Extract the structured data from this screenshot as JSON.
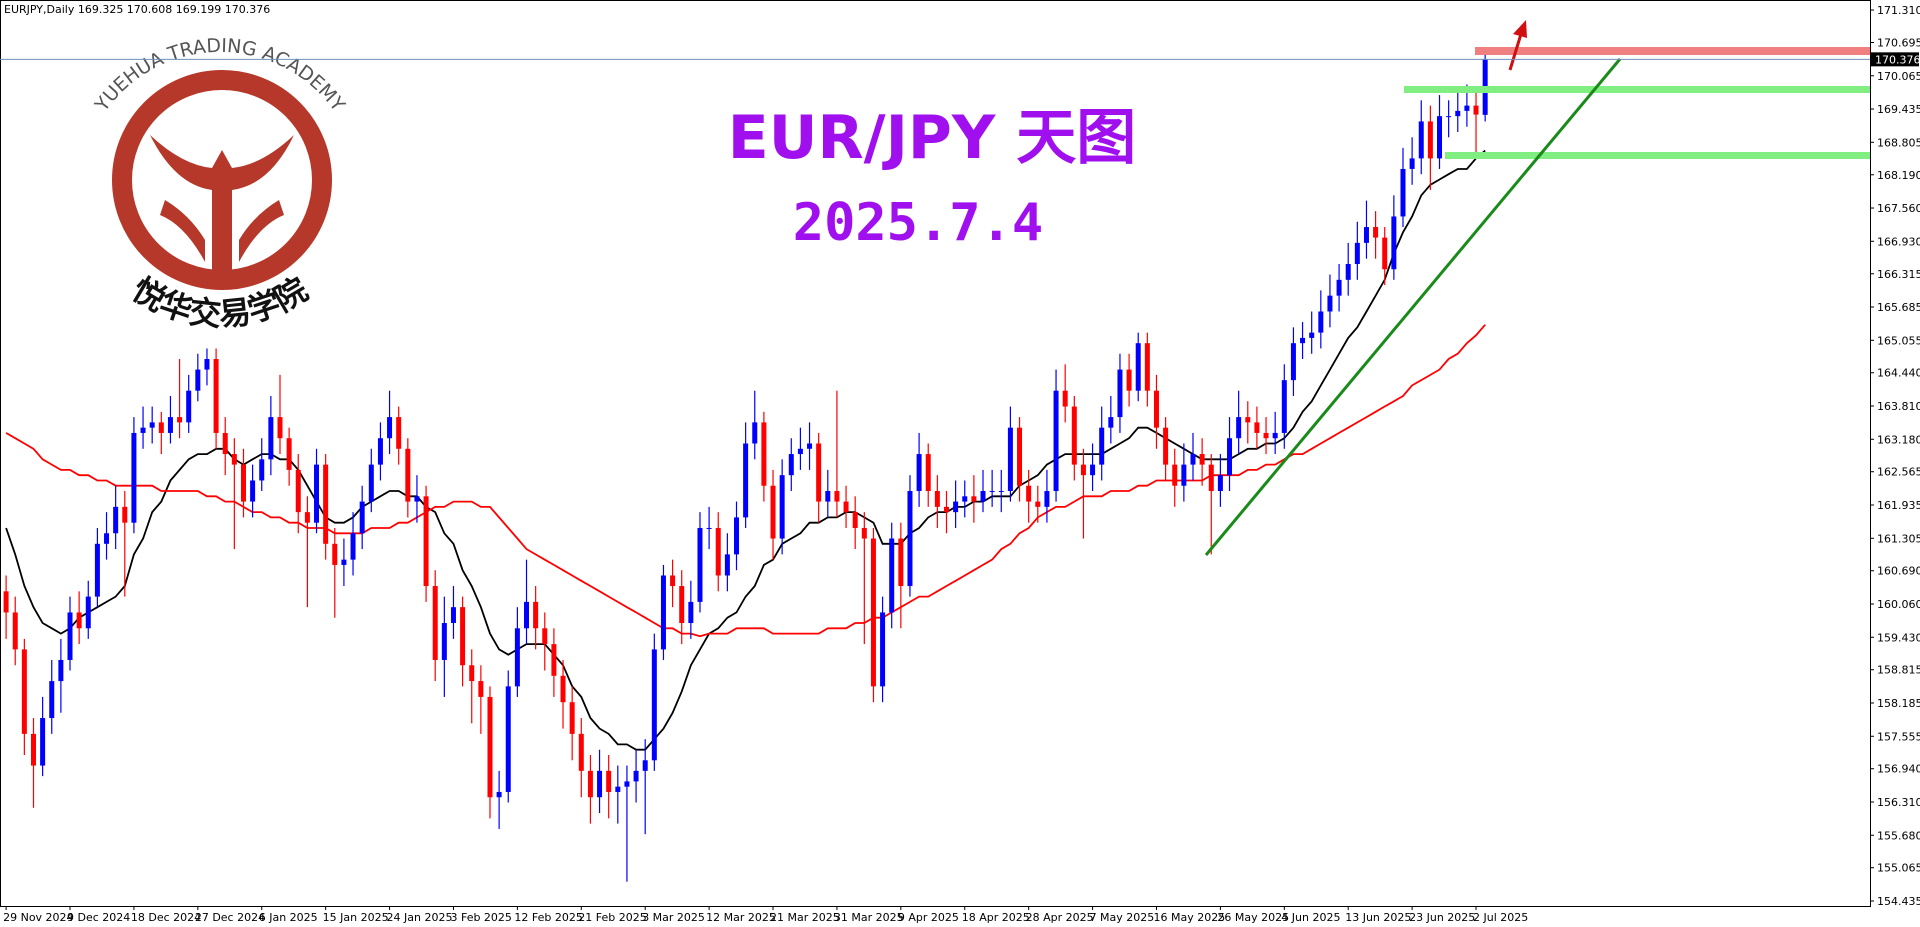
{
  "header": "EURJPY,Daily  169.325 170.608 169.199 170.376",
  "title": "EUR/JPY 天图",
  "subtitle": "2025.7.4",
  "logo_top": "YUEHUA TRADING ACADEMY",
  "logo_bottom": "悦华交易学院",
  "chart_data": {
    "type": "candlestick",
    "up_color": "#0000ff",
    "down_color": "#ff0000",
    "ylim": [
      154.34,
      171.5
    ],
    "yticks": [
      {
        "value": 171.31,
        "label": "171.310"
      },
      170.695,
      170.065,
      169.435,
      168.805,
      {
        "value": 168.19,
        "label": "168.190"
      },
      {
        "value": 167.56,
        "label": "167.560"
      },
      {
        "value": 166.93,
        "label": "166.930"
      },
      166.315,
      165.685,
      165.055,
      {
        "value": 164.44,
        "label": "164.440"
      },
      {
        "value": 163.81,
        "label": "163.810"
      },
      {
        "value": 163.18,
        "label": "163.180"
      },
      162.565,
      161.935,
      161.305,
      {
        "value": 160.69,
        "label": "160.690"
      },
      {
        "value": 160.06,
        "label": "160.060"
      },
      {
        "value": 159.43,
        "label": "159.430"
      },
      158.815,
      158.185,
      157.555,
      {
        "value": 156.94,
        "label": "156.940"
      },
      {
        "value": 156.31,
        "label": "156.310"
      },
      {
        "value": 155.68,
        "label": "155.680"
      },
      155.065,
      154.435
    ],
    "categories": [
      "29 Nov 2024",
      null,
      null,
      null,
      null,
      null,
      null,
      "9 Dec 2024",
      null,
      null,
      null,
      null,
      null,
      null,
      "18 Dec 2024",
      null,
      null,
      null,
      null,
      null,
      null,
      "27 Dec 2024",
      null,
      null,
      null,
      null,
      null,
      null,
      "6 Jan 2025",
      null,
      null,
      null,
      null,
      null,
      null,
      "15 Jan 2025",
      null,
      null,
      null,
      null,
      null,
      null,
      "24 Jan 2025",
      null,
      null,
      null,
      null,
      null,
      null,
      "3 Feb 2025",
      null,
      null,
      null,
      null,
      null,
      null,
      "12 Feb 2025",
      null,
      null,
      null,
      null,
      null,
      null,
      "21 Feb 2025",
      null,
      null,
      null,
      null,
      null,
      null,
      "3 Mar 2025",
      null,
      null,
      null,
      null,
      null,
      null,
      "12 Mar 2025",
      null,
      null,
      null,
      null,
      null,
      null,
      "21 Mar 2025",
      null,
      null,
      null,
      null,
      null,
      null,
      "31 Mar 2025",
      null,
      null,
      null,
      null,
      null,
      null,
      "9 Apr 2025",
      null,
      null,
      null,
      null,
      null,
      null,
      "18 Apr 2025",
      null,
      null,
      null,
      null,
      null,
      null,
      "28 Apr 2025",
      null,
      null,
      null,
      null,
      null,
      null,
      "7 May 2025",
      null,
      null,
      null,
      null,
      null,
      null,
      "16 May 2025",
      null,
      null,
      null,
      null,
      null,
      null,
      "26 May 2025",
      null,
      null,
      null,
      null,
      null,
      null,
      "4 Jun 2025",
      null,
      null,
      null,
      null,
      null,
      null,
      "13 Jun 2025",
      null,
      null,
      null,
      null,
      null,
      null,
      "23 Jun 2025",
      null,
      null,
      null,
      null,
      null,
      null,
      "2 Jul 2025",
      null
    ],
    "open": [
      160.3,
      159.9,
      159.2,
      157.6,
      157.0,
      157.9,
      158.6,
      159.0,
      159.9,
      159.6,
      160.2,
      161.2,
      161.4,
      161.9,
      161.6,
      163.3,
      163.4,
      163.5,
      163.3,
      163.6,
      163.5,
      164.1,
      164.5,
      164.7,
      163.3,
      162.9,
      162.7,
      162.0,
      162.4,
      162.8,
      163.6,
      163.2,
      162.6,
      161.8,
      161.6,
      162.7,
      161.2,
      160.8,
      160.9,
      161.4,
      162.0,
      162.7,
      163.2,
      163.6,
      163.0,
      162.0,
      162.1,
      160.4,
      159.0,
      159.7,
      160.0,
      158.9,
      158.6,
      158.3,
      156.4,
      156.5,
      158.5,
      159.6,
      160.1,
      159.6,
      159.3,
      158.7,
      158.2,
      157.6,
      156.9,
      156.4,
      156.9,
      156.5,
      156.6,
      156.7,
      156.9,
      157.1,
      159.2,
      160.6,
      160.4,
      159.7,
      160.1,
      161.5,
      161.5,
      160.6,
      161.0,
      161.7,
      163.1,
      163.5,
      162.3,
      161.3,
      162.5,
      162.9,
      163.0,
      163.1,
      162.0,
      162.2,
      162.0,
      161.8,
      161.5,
      161.3,
      158.5,
      159.9,
      161.3,
      160.4,
      162.2,
      162.9,
      162.2,
      161.9,
      161.8,
      162.0,
      162.1,
      162.0,
      162.2,
      162.2,
      162.2,
      163.4,
      162.3,
      162.0,
      161.9,
      162.2,
      164.1,
      163.8,
      162.7,
      162.5,
      162.7,
      163.4,
      163.6,
      164.5,
      164.1,
      165.0,
      164.1,
      163.4,
      162.7,
      162.3,
      162.7,
      162.9,
      162.7,
      162.2,
      162.5,
      163.2,
      163.6,
      163.5,
      163.3,
      163.2,
      163.3,
      164.3,
      165.0,
      165.1,
      165.2,
      165.6,
      165.9,
      166.2,
      166.5,
      166.9,
      167.2,
      167.0,
      166.4,
      167.4,
      168.3,
      168.5,
      169.2,
      168.5,
      169.3,
      169.3,
      169.4,
      169.5,
      169.325
    ],
    "high": [
      160.6,
      160.2,
      159.4,
      157.9,
      158.3,
      159.0,
      159.4,
      160.2,
      160.3,
      160.5,
      161.5,
      161.8,
      162.3,
      162.2,
      163.6,
      163.8,
      163.8,
      163.7,
      164.0,
      164.7,
      164.4,
      164.8,
      164.9,
      164.9,
      163.6,
      163.2,
      163.0,
      162.7,
      163.2,
      164.0,
      164.4,
      163.4,
      162.9,
      162.1,
      163.0,
      162.9,
      161.5,
      161.3,
      161.8,
      162.3,
      163.0,
      163.5,
      164.1,
      163.8,
      163.2,
      162.5,
      162.3,
      160.7,
      160.2,
      160.4,
      160.2,
      159.2,
      158.9,
      158.5,
      156.9,
      158.8,
      160.0,
      160.9,
      160.4,
      159.9,
      159.6,
      159.0,
      158.5,
      157.9,
      157.2,
      157.3,
      157.2,
      157.0,
      157.0,
      157.3,
      157.5,
      159.5,
      160.8,
      160.9,
      160.7,
      160.5,
      161.8,
      161.9,
      161.8,
      161.4,
      162.0,
      163.5,
      164.1,
      163.7,
      162.6,
      162.8,
      163.2,
      163.4,
      163.5,
      163.3,
      162.6,
      164.1,
      162.3,
      162.1,
      161.8,
      161.5,
      160.2,
      161.6,
      161.6,
      162.5,
      163.3,
      163.1,
      162.5,
      162.2,
      162.4,
      162.4,
      162.5,
      162.6,
      162.6,
      162.6,
      163.8,
      163.6,
      162.6,
      162.3,
      162.6,
      164.5,
      164.6,
      164.0,
      163.0,
      163.1,
      163.8,
      164.0,
      164.8,
      164.8,
      165.2,
      165.2,
      164.4,
      163.6,
      163.0,
      163.1,
      163.3,
      163.2,
      162.9,
      162.9,
      163.6,
      164.1,
      163.9,
      163.8,
      163.6,
      163.7,
      164.6,
      165.3,
      165.4,
      165.6,
      166.0,
      166.3,
      166.5,
      166.9,
      167.3,
      167.7,
      167.5,
      167.2,
      167.8,
      168.7,
      168.9,
      169.6,
      169.5,
      169.7,
      169.6,
      169.8,
      169.9,
      169.8,
      170.608
    ],
    "low": [
      159.4,
      158.9,
      157.2,
      156.2,
      156.8,
      157.6,
      158.0,
      158.8,
      159.3,
      159.4,
      160.0,
      160.9,
      161.1,
      160.2,
      161.4,
      163.0,
      163.1,
      162.9,
      163.1,
      163.2,
      163.3,
      163.9,
      164.2,
      163.0,
      162.5,
      161.1,
      161.7,
      161.7,
      162.2,
      162.5,
      162.9,
      162.3,
      161.4,
      160.0,
      161.4,
      160.9,
      159.8,
      160.4,
      160.6,
      161.1,
      161.8,
      162.4,
      162.9,
      162.7,
      161.7,
      161.6,
      160.1,
      158.6,
      158.3,
      159.4,
      158.5,
      157.8,
      157.6,
      156.0,
      155.8,
      156.3,
      158.3,
      159.3,
      159.2,
      158.8,
      158.3,
      157.7,
      157.1,
      156.4,
      155.9,
      156.1,
      156.0,
      155.9,
      154.8,
      156.3,
      155.7,
      156.9,
      159.0,
      160.0,
      159.3,
      159.4,
      159.9,
      161.1,
      160.3,
      160.3,
      160.7,
      161.5,
      162.8,
      162.0,
      160.9,
      161.0,
      162.2,
      162.6,
      162.6,
      161.6,
      161.7,
      161.7,
      161.5,
      161.1,
      159.3,
      158.2,
      158.2,
      159.6,
      159.6,
      160.2,
      161.9,
      161.9,
      161.5,
      161.4,
      161.5,
      161.7,
      161.6,
      161.8,
      161.9,
      161.8,
      162.0,
      162.0,
      161.6,
      161.6,
      161.6,
      162.0,
      163.5,
      162.4,
      161.3,
      162.2,
      162.4,
      163.1,
      163.3,
      163.8,
      163.9,
      163.8,
      163.0,
      162.4,
      161.9,
      162.0,
      162.4,
      162.3,
      161.0,
      161.9,
      162.2,
      162.9,
      163.1,
      163.0,
      162.9,
      162.9,
      163.0,
      164.0,
      164.7,
      164.8,
      164.9,
      165.3,
      165.6,
      165.9,
      166.2,
      166.6,
      166.6,
      166.1,
      166.2,
      167.2,
      168.0,
      168.2,
      167.9,
      168.3,
      168.9,
      169.0,
      169.1,
      168.5,
      169.199
    ],
    "close": [
      159.9,
      159.2,
      157.6,
      157.0,
      157.9,
      158.6,
      159.0,
      159.9,
      159.6,
      160.2,
      161.2,
      161.4,
      161.9,
      161.6,
      163.3,
      163.4,
      163.5,
      163.3,
      163.6,
      163.5,
      164.1,
      164.5,
      164.7,
      163.3,
      162.9,
      162.7,
      162.0,
      162.4,
      162.8,
      163.6,
      163.2,
      162.6,
      161.8,
      161.6,
      162.7,
      161.2,
      160.8,
      160.9,
      161.4,
      162.0,
      162.7,
      163.2,
      163.6,
      163.0,
      162.0,
      162.1,
      160.4,
      159.0,
      159.7,
      160.0,
      158.9,
      158.6,
      158.3,
      156.4,
      156.5,
      158.5,
      159.6,
      160.1,
      159.6,
      159.3,
      158.7,
      158.2,
      157.6,
      156.9,
      156.4,
      156.9,
      156.5,
      156.6,
      156.7,
      156.9,
      157.1,
      159.2,
      160.6,
      160.4,
      159.7,
      160.1,
      161.5,
      161.5,
      160.6,
      161.0,
      161.7,
      163.1,
      163.5,
      162.3,
      161.3,
      162.5,
      162.9,
      163.0,
      163.1,
      162.0,
      162.2,
      162.0,
      161.8,
      161.5,
      161.3,
      158.5,
      159.9,
      161.3,
      160.4,
      162.2,
      162.9,
      162.2,
      161.9,
      161.8,
      162.0,
      162.1,
      162.0,
      162.2,
      162.2,
      162.2,
      163.4,
      162.3,
      162.0,
      161.9,
      162.2,
      164.1,
      163.8,
      162.7,
      162.5,
      162.7,
      163.4,
      163.6,
      164.5,
      164.1,
      165.0,
      164.1,
      163.4,
      162.7,
      162.3,
      162.7,
      162.9,
      162.7,
      162.2,
      162.5,
      163.2,
      163.6,
      163.5,
      163.3,
      163.2,
      163.3,
      164.3,
      165.0,
      165.1,
      165.2,
      165.6,
      165.9,
      166.2,
      166.5,
      166.9,
      167.2,
      167.0,
      166.4,
      167.4,
      168.3,
      168.5,
      169.2,
      168.5,
      169.3,
      169.3,
      169.4,
      169.5,
      169.33,
      170.376
    ],
    "series": [
      {
        "color": "#000000",
        "values": [
          161.5,
          161.0,
          160.4,
          160.0,
          159.7,
          159.6,
          159.5,
          159.6,
          159.8,
          159.9,
          160.0,
          160.1,
          160.2,
          160.4,
          161.0,
          161.3,
          161.8,
          162.0,
          162.4,
          162.6,
          162.8,
          162.9,
          162.9,
          163.0,
          163.0,
          162.8,
          162.7,
          162.8,
          162.9,
          162.9,
          162.8,
          162.8,
          162.6,
          162.3,
          162.0,
          161.7,
          161.6,
          161.6,
          161.7,
          161.9,
          162.0,
          162.1,
          162.2,
          162.2,
          162.1,
          162.1,
          161.9,
          161.8,
          161.4,
          161.2,
          160.7,
          160.4,
          160.0,
          159.5,
          159.2,
          159.1,
          159.2,
          159.3,
          159.3,
          159.3,
          159.1,
          158.9,
          158.5,
          158.3,
          157.9,
          157.7,
          157.6,
          157.4,
          157.4,
          157.3,
          157.3,
          157.5,
          157.7,
          158.0,
          158.4,
          158.9,
          159.2,
          159.5,
          159.6,
          159.8,
          159.9,
          160.2,
          160.4,
          160.8,
          160.9,
          161.2,
          161.3,
          161.4,
          161.6,
          161.6,
          161.7,
          161.7,
          161.8,
          161.8,
          161.7,
          161.6,
          161.2,
          161.2,
          161.2,
          161.4,
          161.5,
          161.7,
          161.8,
          161.8,
          161.9,
          161.9,
          162.0,
          162.0,
          162.1,
          162.1,
          162.1,
          162.3,
          162.4,
          162.5,
          162.7,
          162.8,
          162.9,
          162.9,
          162.9,
          162.9,
          162.9,
          163.0,
          163.1,
          163.2,
          163.4,
          163.4,
          163.3,
          163.2,
          163.1,
          163.0,
          162.9,
          162.8,
          162.8,
          162.8,
          162.8,
          162.9,
          163.0,
          163.0,
          163.1,
          163.1,
          163.2,
          163.4,
          163.7,
          163.9,
          164.2,
          164.5,
          164.8,
          165.1,
          165.3,
          165.6,
          165.9,
          166.2,
          166.7,
          167.1,
          167.4,
          167.8,
          168.0,
          168.1,
          168.2,
          168.3,
          168.3,
          168.5,
          168.65
        ]
      },
      {
        "color": "#ff0000",
        "values": [
          163.3,
          163.2,
          163.1,
          163.0,
          162.8,
          162.7,
          162.6,
          162.6,
          162.5,
          162.5,
          162.4,
          162.4,
          162.3,
          162.3,
          162.3,
          162.3,
          162.3,
          162.2,
          162.2,
          162.2,
          162.2,
          162.2,
          162.1,
          162.1,
          162.0,
          162.0,
          161.9,
          161.8,
          161.8,
          161.7,
          161.7,
          161.6,
          161.6,
          161.5,
          161.5,
          161.5,
          161.4,
          161.4,
          161.4,
          161.4,
          161.5,
          161.5,
          161.5,
          161.6,
          161.6,
          161.7,
          161.8,
          161.9,
          161.9,
          162.0,
          162.0,
          162.0,
          161.9,
          161.9,
          161.7,
          161.5,
          161.3,
          161.1,
          161.0,
          160.9,
          160.8,
          160.7,
          160.6,
          160.5,
          160.4,
          160.3,
          160.2,
          160.1,
          160.0,
          159.9,
          159.8,
          159.7,
          159.6,
          159.6,
          159.5,
          159.5,
          159.45,
          159.5,
          159.5,
          159.5,
          159.6,
          159.6,
          159.6,
          159.6,
          159.5,
          159.5,
          159.5,
          159.5,
          159.5,
          159.5,
          159.6,
          159.6,
          159.6,
          159.7,
          159.7,
          159.8,
          159.8,
          159.9,
          160.0,
          160.1,
          160.2,
          160.2,
          160.3,
          160.4,
          160.5,
          160.6,
          160.7,
          160.8,
          160.9,
          161.1,
          161.2,
          161.4,
          161.5,
          161.7,
          161.8,
          161.9,
          161.9,
          162.0,
          162.1,
          162.1,
          162.1,
          162.2,
          162.2,
          162.2,
          162.3,
          162.3,
          162.4,
          162.4,
          162.4,
          162.4,
          162.4,
          162.4,
          162.5,
          162.5,
          162.5,
          162.5,
          162.6,
          162.6,
          162.7,
          162.7,
          162.8,
          162.9,
          162.9,
          163.0,
          163.1,
          163.2,
          163.3,
          163.4,
          163.5,
          163.6,
          163.7,
          163.8,
          163.9,
          164.0,
          164.2,
          164.3,
          164.4,
          164.5,
          164.7,
          164.8,
          165.0,
          165.15,
          165.35
        ]
      }
    ]
  }
}
